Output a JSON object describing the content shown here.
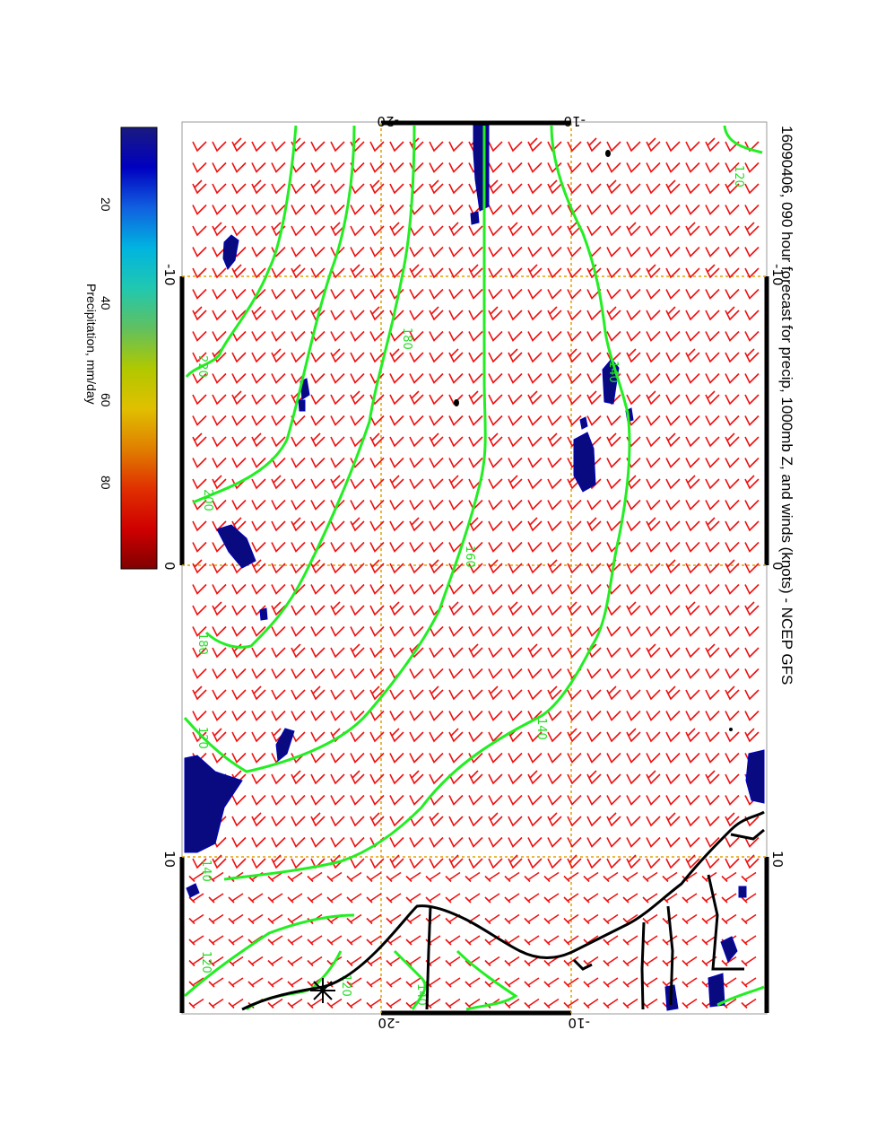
{
  "title": "16090406, 090 hour forecast for precip, 1000mb Z, and winds (knots) - NCEP GFS",
  "axes": {
    "top_ticks": [
      "-20",
      "-10"
    ],
    "bottom_ticks": [
      "-20",
      "-10"
    ],
    "left_ticks": [
      "-10",
      "0",
      "10"
    ],
    "right_ticks": [
      "-10",
      "0",
      "10"
    ]
  },
  "colorbar": {
    "label": "Precipitation, mm/day",
    "ticks": [
      "20",
      "40",
      "60",
      "80"
    ],
    "colors": [
      "#1a1a80",
      "#0000c0",
      "#1060e0",
      "#00b4e0",
      "#20c8b0",
      "#60c060",
      "#b0c800",
      "#e0c000",
      "#e08000",
      "#e03000",
      "#d00000",
      "#800000"
    ]
  },
  "contours": {
    "color": "#22ee22",
    "labels": [
      "120",
      "180",
      "220",
      "200",
      "180",
      "160",
      "140",
      "140",
      "140",
      "120",
      "120",
      "140",
      "120"
    ]
  },
  "colors": {
    "wind_barbs": "#ee1111",
    "coastline": "#000000",
    "grid": "#e0a000",
    "precip": "#0a0a80"
  }
}
